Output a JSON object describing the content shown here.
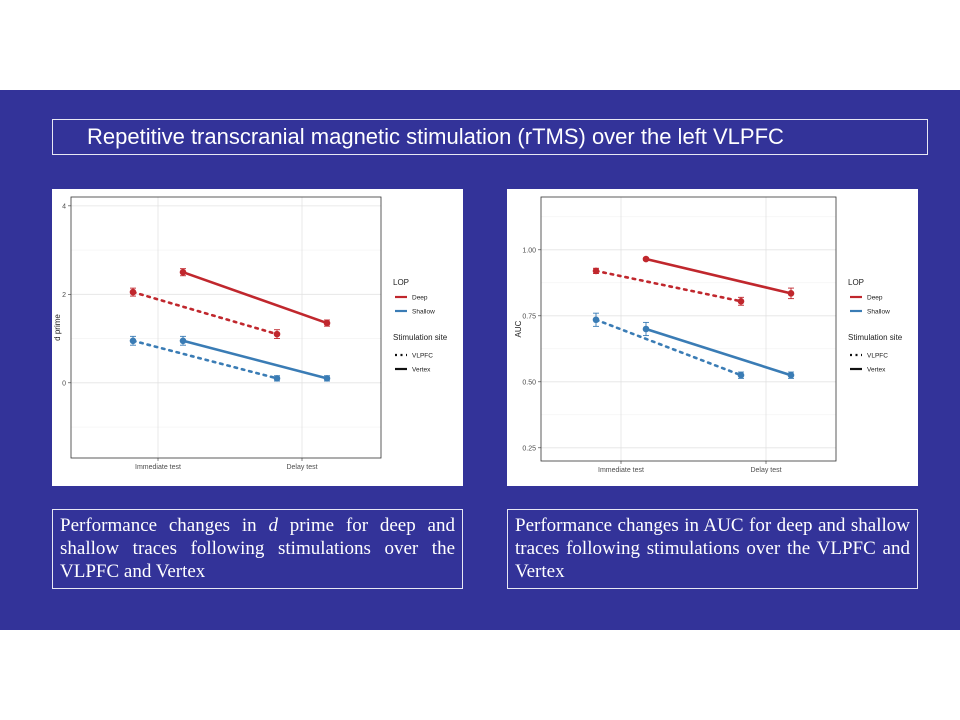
{
  "slide": {
    "title": "Repetitive transcranial magnetic stimulation (rTMS) over the left VLPFC",
    "band_color": "#333399"
  },
  "captions": {
    "left": {
      "before": "Performance changes in ",
      "italic": "d",
      "after": " prime for deep and shallow traces following stimulations over the VLPFC and Vertex"
    },
    "right": {
      "text": "Performance changes in AUC for deep and shallow traces following stimulations over the VLPFC and Vertex"
    }
  },
  "colors": {
    "Deep": "#c0272d",
    "Shallow": "#3a7cb5"
  },
  "chart_data": [
    {
      "type": "line",
      "ylabel": "d prime",
      "xlabel": "",
      "categories": [
        "Immediate test",
        "Delay test"
      ],
      "ylim": [
        -1.7,
        4.2
      ],
      "yticks": [
        0,
        2,
        4
      ],
      "grid": true,
      "legend": {
        "placement": "right",
        "LOP": {
          "title": "LOP",
          "items": [
            "Deep",
            "Shallow"
          ]
        },
        "site": {
          "title": "Stimulation site",
          "items": [
            "VLPFC",
            "Vertex"
          ]
        }
      },
      "series": [
        {
          "lop": "Deep",
          "site": "VLPFC",
          "values": [
            2.05,
            1.1
          ],
          "errors": [
            0.09,
            0.1
          ]
        },
        {
          "lop": "Deep",
          "site": "Vertex",
          "values": [
            2.5,
            1.35
          ],
          "errors": [
            0.08,
            0.07
          ]
        },
        {
          "lop": "Shallow",
          "site": "VLPFC",
          "values": [
            0.95,
            0.1
          ],
          "errors": [
            0.1,
            0.06
          ]
        },
        {
          "lop": "Shallow",
          "site": "Vertex",
          "values": [
            0.95,
            0.1
          ],
          "errors": [
            0.1,
            0.06
          ]
        }
      ]
    },
    {
      "type": "line",
      "ylabel": "AUC",
      "xlabel": "",
      "categories": [
        "Immediate test",
        "Delay test"
      ],
      "ylim": [
        0.2,
        1.2
      ],
      "yticks": [
        "0.25",
        "0.50",
        "0.75",
        "1.00"
      ],
      "grid": true,
      "legend": {
        "placement": "right",
        "LOP": {
          "title": "LOP",
          "items": [
            "Deep",
            "Shallow"
          ]
        },
        "site": {
          "title": "Stimulation site",
          "items": [
            "VLPFC",
            "Vertex"
          ]
        }
      },
      "series": [
        {
          "lop": "Deep",
          "site": "VLPFC",
          "values": [
            0.92,
            0.805
          ],
          "errors": [
            0.01,
            0.015
          ]
        },
        {
          "lop": "Deep",
          "site": "Vertex",
          "values": [
            0.965,
            0.835
          ],
          "errors": [
            0.005,
            0.02
          ]
        },
        {
          "lop": "Shallow",
          "site": "VLPFC",
          "values": [
            0.735,
            0.525
          ],
          "errors": [
            0.025,
            0.012
          ]
        },
        {
          "lop": "Shallow",
          "site": "Vertex",
          "values": [
            0.7,
            0.525
          ],
          "errors": [
            0.025,
            0.012
          ]
        }
      ]
    }
  ]
}
